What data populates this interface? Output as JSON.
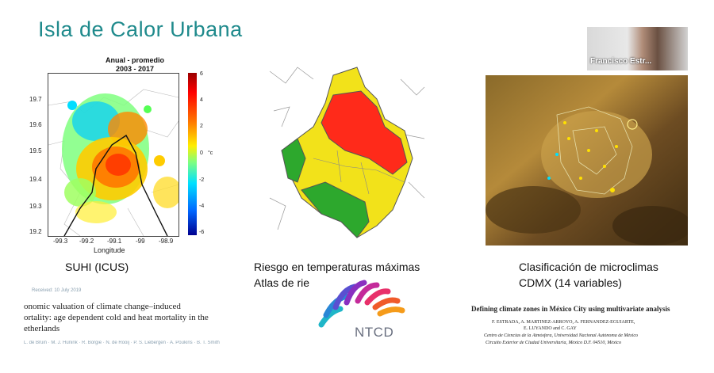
{
  "slide": {
    "title": "Isla de Calor Urbana"
  },
  "panel_heat": {
    "title_line1": "Anual - promedio",
    "title_line2": "2003 - 2017",
    "y_ticks": [
      "19.7",
      "19.6",
      "19.5",
      "19.4",
      "19.3",
      "19.2"
    ],
    "x_ticks": [
      "-99.3",
      "-99.2",
      "-99.1",
      "-99",
      "-98.9"
    ],
    "x_label": "Longitude",
    "colorbar_ticks": [
      "6",
      "4",
      "2",
      "0",
      "-2",
      "-4",
      "-6"
    ],
    "colorbar_unit": "°c",
    "caption": "SUHI (ICUS)"
  },
  "panel_risk": {
    "caption_line1": "Riesgo en temperaturas máximas",
    "caption_line2": "Atlas de rie"
  },
  "panel_micro": {
    "caption_line1": "Clasificación de microclimas",
    "caption_line2": "CDMX (14 variables)"
  },
  "webcam": {
    "name": "Francisco Estr..."
  },
  "doc_left": {
    "line1": "onomic valuation of climate change–induced",
    "line2": "ortality: age dependent cold and heat mortality in the",
    "line3": "etherlands",
    "header_faint": "Received: 10 July 2019",
    "authors_faint": "L. de Bruin · M. J. Hunink · R. Borgie · N. de Rooij · P. S. Liebergen · A. Poukins · B. T. Smith"
  },
  "doc_right": {
    "title": "Defining climate zones in México City using multivariate analysis",
    "authors": "F. ESTRADA, A. MARTINEZ-ARROYO, A. FERNANDEZ-EGUIARTE,",
    "authors2": "E. LUYANDO and C. GAY",
    "affil1": "Centro de Ciencias de la Atmósfera, Universidad Nacional Autónoma de México",
    "affil2": "Circuito Exterior de Ciudad Universitaria, México D.F. 04510, México"
  },
  "logo": {
    "text": "NTCD"
  },
  "colors": {
    "title": "#1f8a8c",
    "risk_red": "#ff2a1a",
    "risk_yellow": "#f2e21a",
    "risk_green": "#2da82d"
  }
}
